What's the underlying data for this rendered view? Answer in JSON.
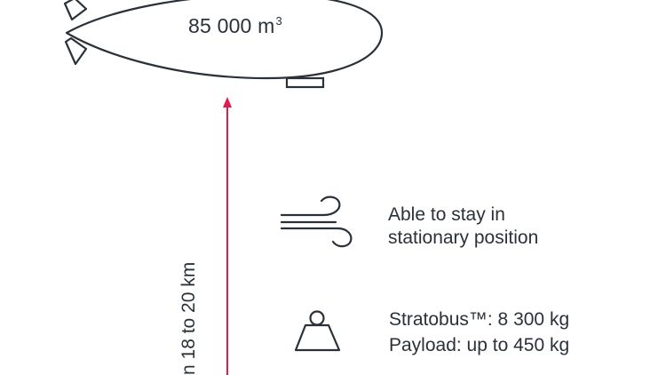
{
  "airship": {
    "volume_value": "85 000 m",
    "volume_exponent": "3"
  },
  "altitude": {
    "label": "n 18 to 20 km"
  },
  "features": {
    "wind": {
      "icon": "wind-icon",
      "line1": "Able to stay in",
      "line2": "stationary position"
    },
    "weight": {
      "icon": "weight-icon",
      "line1": "Stratobus™: 8 300 kg",
      "line2": "Payload: up to 450 kg"
    }
  },
  "colors": {
    "outline": "#2b3138",
    "arrow": "#e5194a"
  }
}
